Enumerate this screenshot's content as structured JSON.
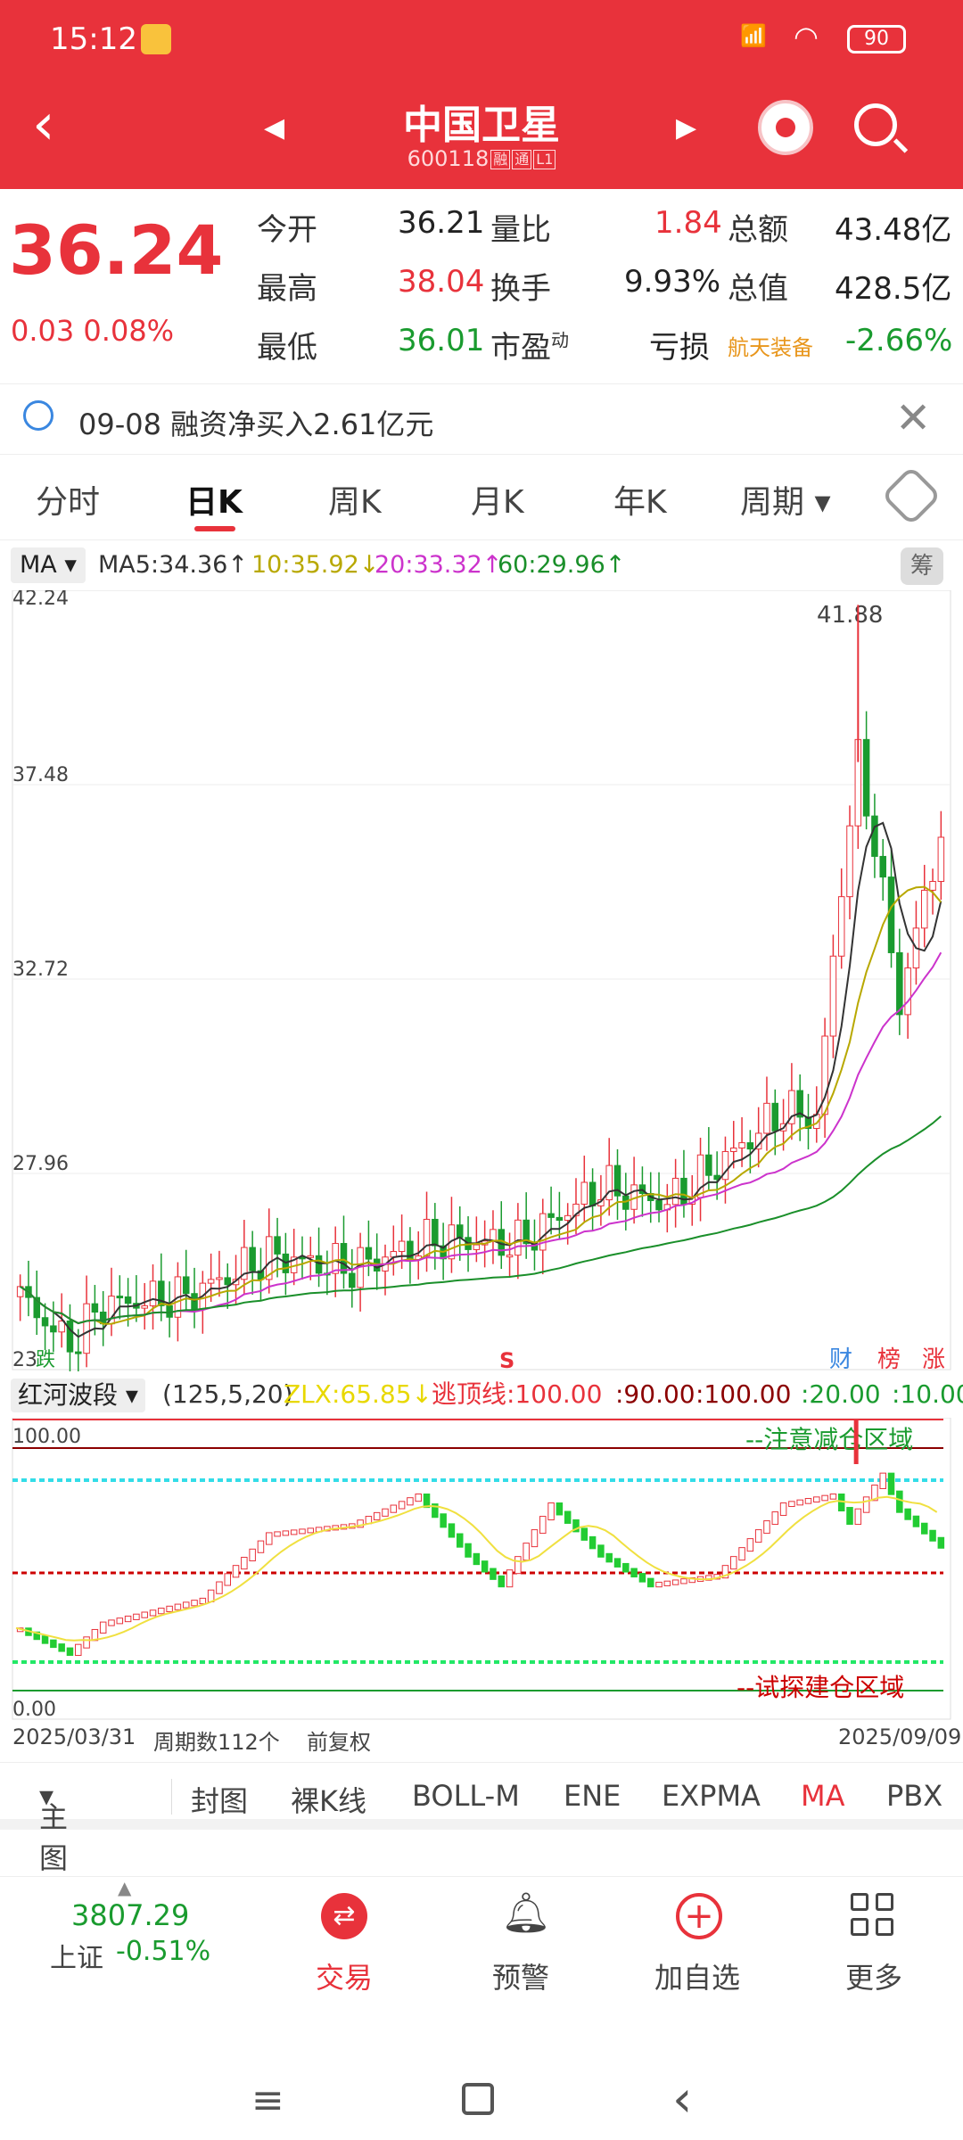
{
  "status_bar": {
    "time": "15:12",
    "battery": "90",
    "signal": "HD"
  },
  "header": {
    "title": "中国卫星",
    "code": "600118",
    "tag1": "融",
    "tag2": "通",
    "tag3": "L1"
  },
  "quote": {
    "price": "36.24",
    "change": "0.03",
    "change_pct": "0.08%",
    "rows": [
      {
        "l1": "今开",
        "v1": "36.21",
        "l2": "量比",
        "v2": "1.84",
        "l3": "总额",
        "v3": "43.48亿"
      },
      {
        "l1": "最高",
        "v1": "38.04",
        "l2": "换手",
        "v2": "9.93%",
        "l3": "总值",
        "v3": "428.5亿"
      },
      {
        "l1": "最低",
        "v1": "36.01",
        "l2": "市盈",
        "l2sup": "动",
        "v2": "亏损",
        "l3": "航天装备",
        "v3": "-2.66%"
      }
    ]
  },
  "notice": {
    "text": "09-08 融资净买入2.61亿元"
  },
  "tabs": [
    "分时",
    "日K",
    "周K",
    "月K",
    "年K",
    "周期"
  ],
  "ma_legend": {
    "select": "MA",
    "ma5": "MA5:34.36↑",
    "ma10": "10:35.92↓",
    "ma20": "20:33.32↑",
    "ma60": "60:29.96↑",
    "chou": "筹"
  },
  "main_chart": {
    "y_labels": [
      "42.24",
      "37.48",
      "32.72",
      "27.96",
      "23"
    ],
    "high_label": "41.88",
    "marker_die": "跌",
    "marker_s": "S",
    "badges": [
      "财",
      "榜",
      "涨"
    ]
  },
  "sub_legend": {
    "name": "红河波段",
    "params": "(125,5,20)",
    "zlx": "ZLX:65.85↓",
    "escape": "逃顶线:100.00",
    "v90": ":90.00",
    "v100": ":100.00",
    "v20": ":20.00",
    "v10": ":10.00"
  },
  "sub_chart": {
    "top": "100.00",
    "bottom": "0.00",
    "zone_top": "--注意减仓区域",
    "zone_bottom": "--试探建仓区域"
  },
  "time_axis": {
    "start": "2025/03/31",
    "count": "周期数112个",
    "adj": "前复权",
    "end": "2025/09/09"
  },
  "indicators": [
    "主图",
    "封图",
    "裸K线",
    "BOLL-M",
    "ENE",
    "EXPMA",
    "MA",
    "PBX"
  ],
  "bottom_nav": {
    "index_value": "3807.29",
    "index_name": "上证",
    "index_chg": "-0.51%",
    "trade": "交易",
    "alert": "预警",
    "add": "加自选",
    "more": "更多"
  },
  "chart_data": {
    "type": "candlestick",
    "title": "中国卫星",
    "ylim": [
      23,
      42.24
    ],
    "x_range": [
      "2025/03/31",
      "2025/09/09"
    ],
    "ma": {
      "MA5": 34.36,
      "MA10": 35.92,
      "MA20": 33.32,
      "MA60": 29.96
    },
    "high": 41.88,
    "last_close": 36.24
  }
}
